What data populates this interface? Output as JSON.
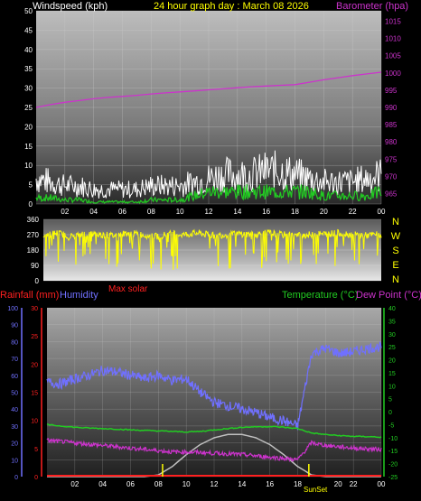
{
  "header": {
    "left_title": "Windspeed (kph)",
    "center_title": "24 hour graph day : March 08 2026",
    "right_title": "Barometer (hpa)"
  },
  "hour_labels": [
    "02",
    "04",
    "06",
    "08",
    "10",
    "12",
    "14",
    "16",
    "18",
    "20",
    "22",
    "00"
  ],
  "colors": {
    "wind_title": "#ffffff",
    "baro": "#cc33cc",
    "title_center": "#ffff00",
    "wind_dir": "#ffff00",
    "rain": "#ff2020",
    "humidity": "#7070ff",
    "temp": "#22cc22",
    "dew": "#cc33cc",
    "solar": "#c0c0c0",
    "lightning": "#ffff00"
  },
  "chart_data": [
    {
      "type": "line",
      "name": "wind-baro",
      "title": "24 hour graph day : March 08 2026",
      "xlabel": "",
      "x": [
        "00",
        "01",
        "02",
        "03",
        "04",
        "05",
        "06",
        "07",
        "08",
        "09",
        "10",
        "11",
        "12",
        "13",
        "14",
        "15",
        "16",
        "17",
        "18",
        "19",
        "20",
        "21",
        "22",
        "23",
        "24"
      ],
      "xlim": [
        0,
        24
      ],
      "left_axis": {
        "label": "Windspeed (kph)",
        "ticks": [
          0,
          5,
          10,
          15,
          20,
          25,
          30,
          35,
          40,
          45,
          50
        ],
        "ylim": [
          0,
          50
        ]
      },
      "right_axis": {
        "label": "Barometer (hpa)",
        "ticks": [
          965,
          970,
          975,
          980,
          985,
          990,
          995,
          1000,
          1005,
          1010,
          1015
        ],
        "ylim": [
          962,
          1018
        ]
      },
      "series": [
        {
          "name": "",
          "axis": "right",
          "color": "#cc33cc",
          "values": [
            990.0,
            990.8,
            991.5,
            992.0,
            992.5,
            992.9,
            993.2,
            993.5,
            993.9,
            994.2,
            994.5,
            994.8,
            995.1,
            995.4,
            995.7,
            996.0,
            996.2,
            996.4,
            996.6,
            997.3,
            998.0,
            998.6,
            999.2,
            999.7,
            1000.2
          ]
        },
        {
          "name": "",
          "axis": "left",
          "color": "#ffffff",
          "values": [
            7,
            6,
            5,
            5,
            4,
            4,
            4,
            4,
            5,
            5,
            5,
            6,
            7,
            8,
            8,
            8,
            9,
            9,
            8,
            7,
            6,
            6,
            6,
            7,
            8
          ]
        },
        {
          "name": "",
          "axis": "left",
          "color": "#22cc22",
          "values": [
            1.5,
            1.5,
            1,
            1,
            0.5,
            0.5,
            0.5,
            0.5,
            1,
            1,
            1,
            2,
            3,
            3,
            3,
            3,
            3,
            3,
            3,
            3,
            2,
            2,
            2,
            2,
            3
          ]
        }
      ],
      "grid": true
    },
    {
      "type": "scatter",
      "name": "wind-direction",
      "left_axis": {
        "ticks": [
          0,
          90,
          180,
          270,
          360
        ],
        "ylim": [
          0,
          360
        ]
      },
      "right_axis": {
        "ticks": [
          "N",
          "W",
          "S",
          "E",
          "N"
        ]
      },
      "x": [
        0,
        1,
        2,
        3,
        4,
        5,
        6,
        7,
        8,
        9,
        10,
        11,
        12,
        13,
        14,
        15,
        16,
        17,
        18,
        19,
        20,
        21,
        22,
        23,
        24
      ],
      "values": [
        270,
        280,
        260,
        275,
        270,
        265,
        280,
        270,
        260,
        275,
        270,
        280,
        265,
        270,
        275,
        270,
        280,
        270,
        265,
        270,
        275,
        280,
        270,
        265,
        275
      ],
      "color": "#ffff00"
    },
    {
      "type": "line",
      "name": "temp-humidity",
      "labels": {
        "rain": "Rainfall (mm)",
        "humidity": "Humidity",
        "solar": "Max solar",
        "temp": "Temperature (°C)",
        "dew": "Dew Point (°C)"
      },
      "humidity_axis": {
        "ticks": [
          0,
          10,
          20,
          30,
          40,
          50,
          60,
          70,
          80,
          90,
          100
        ],
        "ylim": [
          0,
          100
        ]
      },
      "rain_axis": {
        "ticks": [
          0,
          5,
          10,
          15,
          20,
          25,
          30
        ],
        "ylim": [
          0,
          30
        ]
      },
      "temp_axis": {
        "ticks": [
          -25,
          -20,
          -15,
          -10,
          -5,
          0,
          5,
          10,
          15,
          20,
          25,
          30,
          35,
          40
        ],
        "ylim": [
          -25,
          40
        ]
      },
      "x": [
        0,
        1,
        2,
        3,
        4,
        5,
        6,
        7,
        8,
        9,
        10,
        11,
        12,
        13,
        14,
        15,
        16,
        17,
        18,
        19,
        20,
        21,
        22,
        23,
        24
      ],
      "series": [
        {
          "name": "Humidity",
          "color": "#7070ff",
          "axis": "humidity",
          "values": [
            56,
            55,
            58,
            60,
            63,
            62,
            60,
            58,
            60,
            57,
            58,
            50,
            44,
            42,
            40,
            38,
            35,
            33,
            30,
            73,
            76,
            73,
            74,
            76,
            77
          ]
        },
        {
          "name": "Temperature (°C)",
          "color": "#22cc22",
          "axis": "temp",
          "values": [
            -5,
            -5.5,
            -6,
            -6.3,
            -6.5,
            -6.7,
            -7,
            -7.2,
            -7.4,
            -7.6,
            -7.8,
            -7.6,
            -7,
            -6.5,
            -6,
            -5.8,
            -5.7,
            -6,
            -6.5,
            -8.2,
            -8.8,
            -9.2,
            -9.5,
            -9.6,
            -9.8
          ]
        },
        {
          "name": "Dew Point (°C)",
          "color": "#cc33cc",
          "axis": "temp",
          "values": [
            -11,
            -11.5,
            -12,
            -12.5,
            -13,
            -13.5,
            -14,
            -14.5,
            -15,
            -15.5,
            -15.5,
            -15.7,
            -16,
            -16.2,
            -16.5,
            -17,
            -17.5,
            -18,
            -18.5,
            -12,
            -13,
            -13.5,
            -14,
            -14.3,
            -14.5
          ]
        },
        {
          "name": "Max solar",
          "color": "#c0c0c0",
          "axis": "humidity",
          "values": [
            0,
            0,
            0,
            0,
            0,
            0,
            0,
            0,
            1,
            6,
            13,
            19,
            23,
            25,
            25,
            23,
            19,
            13,
            6,
            1,
            0,
            0,
            0,
            0,
            0
          ]
        },
        {
          "name": "Rainfall (mm)",
          "color": "#ff2020",
          "axis": "rain",
          "values": [
            0,
            0,
            0,
            0,
            0,
            0,
            0,
            0,
            0,
            0,
            0,
            0,
            0,
            0,
            0,
            0,
            0,
            0,
            0,
            0,
            0,
            0,
            0,
            0,
            0
          ]
        }
      ],
      "markers": {
        "sunrise": 8.3,
        "sunset": 18.8,
        "sun_label": "SunSet"
      }
    }
  ]
}
